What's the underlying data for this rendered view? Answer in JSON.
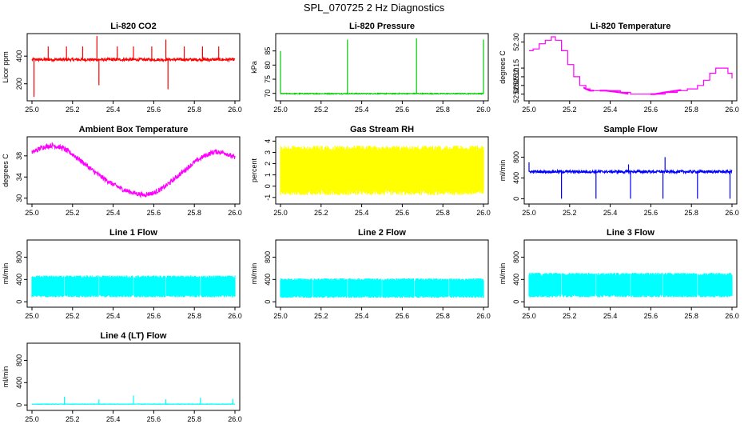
{
  "page": {
    "title": "SPL_070725  2 Hz Diagnostics"
  },
  "chart_data": [
    {
      "type": "line",
      "title": "Li-820 CO2",
      "ylabel": "Licor ppm",
      "color": "#ff0000",
      "xlim": [
        25.0,
        26.0
      ],
      "ylim": [
        100,
        540
      ],
      "xticks": [
        "25.0",
        "25.2",
        "25.4",
        "25.6",
        "25.8",
        "26.0"
      ],
      "yticks": [
        {
          "v": 200,
          "label": "200"
        },
        {
          "v": 400,
          "label": "400"
        }
      ],
      "baseline": 375,
      "noise": 10,
      "spikes": [
        {
          "x": 25.08,
          "y": 470
        },
        {
          "x": 25.17,
          "y": 470
        },
        {
          "x": 25.25,
          "y": 470
        },
        {
          "x": 25.32,
          "y": 545
        },
        {
          "x": 25.33,
          "y": 190
        },
        {
          "x": 25.42,
          "y": 470
        },
        {
          "x": 25.5,
          "y": 470
        },
        {
          "x": 25.59,
          "y": 470
        },
        {
          "x": 25.66,
          "y": 520
        },
        {
          "x": 25.67,
          "y": 160
        },
        {
          "x": 25.75,
          "y": 470
        },
        {
          "x": 25.84,
          "y": 470
        },
        {
          "x": 25.92,
          "y": 470
        },
        {
          "x": 25.01,
          "y": 105
        }
      ]
    },
    {
      "type": "line",
      "title": "Li-820 Pressure",
      "ylabel": "kPa",
      "color": "#00cc00",
      "xlim": [
        25.0,
        26.0
      ],
      "ylim": [
        68.5,
        90
      ],
      "xticks": [
        "25.0",
        "25.2",
        "25.4",
        "25.6",
        "25.8",
        "26.0"
      ],
      "yticks": [
        {
          "v": 70,
          "label": "70"
        },
        {
          "v": 75,
          "label": "75"
        },
        {
          "v": 80,
          "label": "80"
        },
        {
          "v": 85,
          "label": "85"
        }
      ],
      "baseline": 69.9,
      "noise": 0.15,
      "spikes": [
        {
          "x": 25.0,
          "y": 85
        },
        {
          "x": 25.33,
          "y": 89
        },
        {
          "x": 25.67,
          "y": 89.5
        },
        {
          "x": 26.0,
          "y": 89
        }
      ]
    },
    {
      "type": "step",
      "title": "Li-820 Temperature",
      "ylabel": "degrees C",
      "color": "#ff00ff",
      "xlim": [
        25.0,
        26.0
      ],
      "ylim": [
        51.98,
        52.33
      ],
      "xticks": [
        "25.0",
        "25.2",
        "25.4",
        "25.6",
        "25.8",
        "26.0"
      ],
      "yticks": [
        {
          "v": 52.0,
          "label": "52.00"
        },
        {
          "v": 52.05,
          "label": "52.05"
        },
        {
          "v": 52.1,
          "label": "52.10"
        },
        {
          "v": 52.15,
          "label": "52.15"
        },
        {
          "v": 52.3,
          "label": "52.30"
        }
      ],
      "points": [
        [
          25.0,
          52.25
        ],
        [
          25.02,
          52.26
        ],
        [
          25.05,
          52.29
        ],
        [
          25.08,
          52.31
        ],
        [
          25.11,
          52.33
        ],
        [
          25.13,
          52.31
        ],
        [
          25.16,
          52.25
        ],
        [
          25.19,
          52.17
        ],
        [
          25.22,
          52.1
        ],
        [
          25.25,
          52.05
        ],
        [
          25.28,
          52.03
        ],
        [
          25.3,
          52.02
        ],
        [
          25.38,
          52.02
        ],
        [
          25.45,
          52.01
        ],
        [
          25.5,
          52.0
        ],
        [
          25.62,
          52.0
        ],
        [
          25.67,
          52.01
        ],
        [
          25.73,
          52.02
        ],
        [
          25.78,
          52.03
        ],
        [
          25.83,
          52.05
        ],
        [
          25.86,
          52.08
        ],
        [
          25.89,
          52.12
        ],
        [
          25.92,
          52.15
        ],
        [
          25.98,
          52.12
        ],
        [
          26.0,
          52.09
        ]
      ],
      "dither": [
        [
          25.27,
          25.32
        ],
        [
          25.35,
          25.49
        ],
        [
          25.6,
          25.75
        ]
      ]
    },
    {
      "type": "line",
      "title": "Ambient Box Temperature",
      "ylabel": "degrees C",
      "color": "#ff00ff",
      "xlim": [
        25.0,
        26.0
      ],
      "ylim": [
        29.5,
        41
      ],
      "xticks": [
        "25.0",
        "25.2",
        "25.4",
        "25.6",
        "25.8",
        "26.0"
      ],
      "yticks": [
        {
          "v": 30,
          "label": "30"
        },
        {
          "v": 34,
          "label": "34"
        },
        {
          "v": 38,
          "label": "38"
        }
      ],
      "points": [
        [
          25.0,
          38.6
        ],
        [
          25.05,
          39.6
        ],
        [
          25.1,
          40.0
        ],
        [
          25.15,
          39.5
        ],
        [
          25.2,
          38.3
        ],
        [
          25.25,
          36.8
        ],
        [
          25.3,
          35.2
        ],
        [
          25.35,
          33.8
        ],
        [
          25.4,
          32.6
        ],
        [
          25.45,
          31.6
        ],
        [
          25.5,
          31.0
        ],
        [
          25.55,
          30.6
        ],
        [
          25.6,
          31.0
        ],
        [
          25.65,
          32.0
        ],
        [
          25.7,
          33.6
        ],
        [
          25.75,
          35.2
        ],
        [
          25.8,
          36.8
        ],
        [
          25.85,
          38.0
        ],
        [
          25.9,
          38.8
        ],
        [
          25.95,
          38.6
        ],
        [
          26.0,
          37.6
        ]
      ],
      "noise": 0.45
    },
    {
      "type": "band",
      "title": "Gas Stream RH",
      "ylabel": "percent",
      "color": "#ffff00",
      "xlim": [
        25.0,
        26.0
      ],
      "ylim": [
        -1.3,
        4.1
      ],
      "xticks": [
        "25.0",
        "25.2",
        "25.4",
        "25.6",
        "25.8",
        "26.0"
      ],
      "yticks": [
        {
          "v": -1,
          "label": "-1"
        },
        {
          "v": 0,
          "label": "0"
        },
        {
          "v": 1,
          "label": "1"
        },
        {
          "v": 2,
          "label": "2"
        },
        {
          "v": 3,
          "label": "3"
        },
        {
          "v": 4,
          "label": "4"
        }
      ],
      "low": -0.8,
      "high": 3.6,
      "gaps": []
    },
    {
      "type": "line",
      "title": "Sample Flow",
      "ylabel": "ml/min",
      "color": "#0000ff",
      "xlim": [
        25.0,
        26.0
      ],
      "ylim": [
        -40,
        1130
      ],
      "xticks": [
        "25.0",
        "25.2",
        "25.4",
        "25.6",
        "25.8",
        "26.0"
      ],
      "yticks": [
        {
          "v": 0,
          "label": "0"
        },
        {
          "v": 400,
          "label": "400"
        },
        {
          "v": 800,
          "label": "800"
        }
      ],
      "baseline": 520,
      "noise": 25,
      "spikes": [
        {
          "x": 25.0,
          "y": 700
        },
        {
          "x": 25.16,
          "y": 0
        },
        {
          "x": 25.33,
          "y": 0
        },
        {
          "x": 25.5,
          "y": 0
        },
        {
          "x": 25.49,
          "y": 660
        },
        {
          "x": 25.66,
          "y": 0
        },
        {
          "x": 25.67,
          "y": 800
        },
        {
          "x": 25.83,
          "y": 0
        },
        {
          "x": 25.99,
          "y": 0
        }
      ]
    },
    {
      "type": "band",
      "title": "Line 1 Flow",
      "ylabel": "ml/min",
      "color": "#00ffff",
      "xlim": [
        25.0,
        26.0
      ],
      "ylim": [
        -40,
        1050
      ],
      "xticks": [
        "25.0",
        "25.2",
        "25.4",
        "25.6",
        "25.8",
        "26.0"
      ],
      "yticks": [
        {
          "v": 0,
          "label": "0"
        },
        {
          "v": 400,
          "label": "400"
        },
        {
          "v": 800,
          "label": "800"
        }
      ],
      "low": 80,
      "high": 470,
      "gaps": [
        25.16,
        25.33,
        25.5,
        25.66,
        25.83
      ]
    },
    {
      "type": "band",
      "title": "Line 2 Flow",
      "ylabel": "ml/min",
      "color": "#00ffff",
      "xlim": [
        25.0,
        26.0
      ],
      "ylim": [
        -40,
        1050
      ],
      "xticks": [
        "25.0",
        "25.2",
        "25.4",
        "25.6",
        "25.8",
        "26.0"
      ],
      "yticks": [
        {
          "v": 0,
          "label": "0"
        },
        {
          "v": 400,
          "label": "400"
        },
        {
          "v": 800,
          "label": "800"
        }
      ],
      "low": 70,
      "high": 420,
      "gaps": [
        25.16,
        25.33,
        25.5,
        25.66,
        25.83
      ]
    },
    {
      "type": "band",
      "title": "Line 3 Flow",
      "ylabel": "ml/min",
      "color": "#00ffff",
      "xlim": [
        25.0,
        26.0
      ],
      "ylim": [
        -40,
        1050
      ],
      "xticks": [
        "25.0",
        "25.2",
        "25.4",
        "25.6",
        "25.8",
        "26.0"
      ],
      "yticks": [
        {
          "v": 0,
          "label": "0"
        },
        {
          "v": 400,
          "label": "400"
        },
        {
          "v": 800,
          "label": "800"
        }
      ],
      "low": 80,
      "high": 520,
      "gaps": [
        25.16,
        25.33,
        25.5,
        25.66,
        25.83
      ]
    },
    {
      "type": "line",
      "title": "Line 4 (LT) Flow",
      "ylabel": "ml/min",
      "color": "#00ffff",
      "xlim": [
        25.0,
        26.0
      ],
      "ylim": [
        -40,
        1050
      ],
      "xticks": [
        "25.0",
        "25.2",
        "25.4",
        "25.6",
        "25.8",
        "26.0"
      ],
      "yticks": [
        {
          "v": 0,
          "label": "0"
        },
        {
          "v": 400,
          "label": "400"
        },
        {
          "v": 800,
          "label": "800"
        }
      ],
      "baseline": 15,
      "noise": 4,
      "spikes": [
        {
          "x": 25.16,
          "y": 150
        },
        {
          "x": 25.33,
          "y": 100
        },
        {
          "x": 25.5,
          "y": 170
        },
        {
          "x": 25.66,
          "y": 100
        },
        {
          "x": 25.83,
          "y": 130
        },
        {
          "x": 25.99,
          "y": 110
        }
      ]
    }
  ]
}
